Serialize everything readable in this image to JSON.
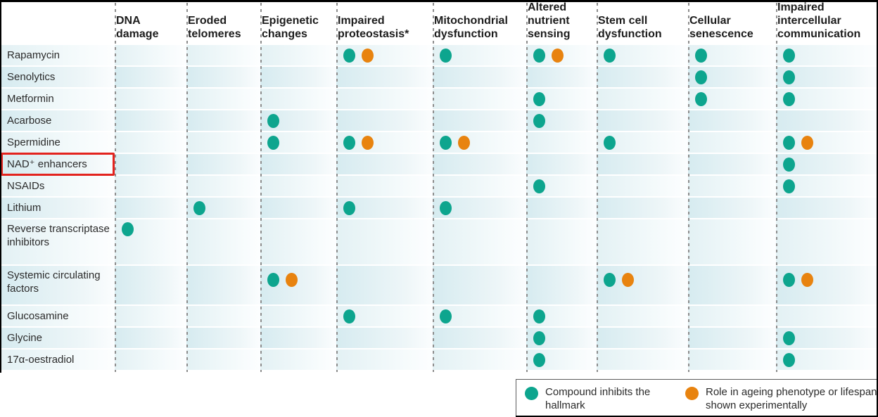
{
  "figure": {
    "colors": {
      "teal": "#0DA58E",
      "orange": "#E8830F",
      "highlight_red": "#E3231E"
    },
    "legend": {
      "items": [
        {
          "color": "#0DA58E",
          "label": "Compound inhibits the hallmark"
        },
        {
          "color": "#E8830F",
          "label": "Role in ageing phenotype or lifespan shown experimentally"
        }
      ]
    }
  },
  "chart_data": {
    "type": "heatmap",
    "description": "Dot matrix of compounds (rows) versus hallmarks of ageing (columns). Cell value 0 = no dot, 1 = teal dot (compound inhibits the hallmark), 2 = teal dot plus orange dot (role in ageing phenotype or lifespan shown experimentally).",
    "columns": [
      "DNA damage",
      "Eroded telomeres",
      "Epigenetic changes",
      "Impaired proteostasis*",
      "Mitochondrial dysfunction",
      "Altered nutrient sensing",
      "Stem cell dysfunction",
      "Cellular senescence",
      "Impaired intercellular communication"
    ],
    "rows": [
      {
        "label": "Rapamycin",
        "values": [
          0,
          0,
          0,
          2,
          1,
          2,
          1,
          1,
          1
        ]
      },
      {
        "label": "Senolytics",
        "values": [
          0,
          0,
          0,
          0,
          0,
          0,
          0,
          1,
          1
        ]
      },
      {
        "label": "Metformin",
        "values": [
          0,
          0,
          0,
          0,
          0,
          1,
          0,
          1,
          1
        ]
      },
      {
        "label": "Acarbose",
        "values": [
          0,
          0,
          1,
          0,
          0,
          1,
          0,
          0,
          0
        ]
      },
      {
        "label": "Spermidine",
        "values": [
          0,
          0,
          1,
          2,
          2,
          0,
          1,
          0,
          2
        ]
      },
      {
        "label": "NAD⁺ enhancers",
        "values": [
          0,
          0,
          0,
          0,
          0,
          0,
          0,
          0,
          1
        ],
        "highlighted": true
      },
      {
        "label": "NSAIDs",
        "values": [
          0,
          0,
          0,
          0,
          0,
          1,
          0,
          0,
          1
        ]
      },
      {
        "label": "Lithium",
        "values": [
          0,
          1,
          0,
          1,
          1,
          0,
          0,
          0,
          0
        ]
      },
      {
        "label": "Reverse transcriptase inhibitors",
        "values": [
          1,
          0,
          0,
          0,
          0,
          0,
          0,
          0,
          0
        ],
        "label_lines": 3
      },
      {
        "label": "Systemic circulating factors",
        "values": [
          0,
          0,
          2,
          0,
          0,
          0,
          2,
          0,
          2
        ],
        "label_lines": 2
      },
      {
        "label": "Glucosamine",
        "values": [
          0,
          0,
          0,
          1,
          1,
          1,
          0,
          0,
          0
        ]
      },
      {
        "label": "Glycine",
        "values": [
          0,
          0,
          0,
          0,
          0,
          1,
          0,
          0,
          1
        ]
      },
      {
        "label": "17α-oestradiol",
        "values": [
          0,
          0,
          0,
          0,
          0,
          1,
          0,
          0,
          1
        ]
      }
    ],
    "value_legend": {
      "1": "Compound inhibits the hallmark (teal dot)",
      "2": "Also: role in ageing phenotype or lifespan shown experimentally (orange dot)"
    },
    "legend_position": "bottom-right"
  }
}
